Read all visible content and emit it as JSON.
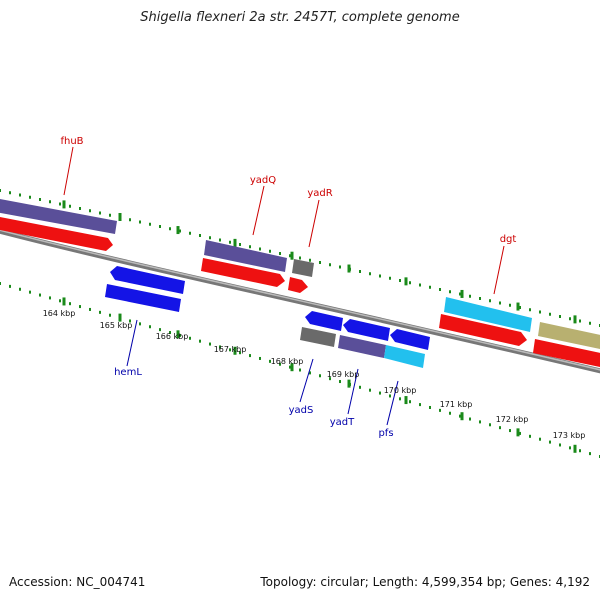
{
  "title": "Shigella flexneri 2a str. 2457T, complete genome",
  "footer": {
    "accession": "Accession: NC_004741",
    "topology": "Topology: circular; Length: 4,599,354 bp; Genes: 4,192"
  },
  "colors": {
    "purple": "#5a4f99",
    "red": "#ee1111",
    "blue": "#1414e6",
    "gray": "#6a6a6a",
    "cyan": "#22c0ee",
    "olive": "#b8b070",
    "backbone": "#888888",
    "tick": "#1a8a1a",
    "label_forward": "#cc0000",
    "label_reverse": "#0000aa"
  },
  "ticks": [
    "164 kbp",
    "165 kbp",
    "166 kbp",
    "167 kbp",
    "168 kbp",
    "169 kbp",
    "170 kbp",
    "171 kbp",
    "172 kbp",
    "173 kbp"
  ],
  "gene_labels": [
    {
      "id": "fhuB",
      "text": "fhuB",
      "strand": "forward"
    },
    {
      "id": "yadQ",
      "text": "yadQ",
      "strand": "forward"
    },
    {
      "id": "yadR",
      "text": "yadR",
      "strand": "forward"
    },
    {
      "id": "dgt",
      "text": "dgt",
      "strand": "forward"
    },
    {
      "id": "hemL",
      "text": "hemL",
      "strand": "reverse"
    },
    {
      "id": "yadS",
      "text": "yadS",
      "strand": "reverse"
    },
    {
      "id": "yadT",
      "text": "yadT",
      "strand": "reverse"
    },
    {
      "id": "pfs",
      "text": "pfs",
      "strand": "reverse"
    }
  ]
}
